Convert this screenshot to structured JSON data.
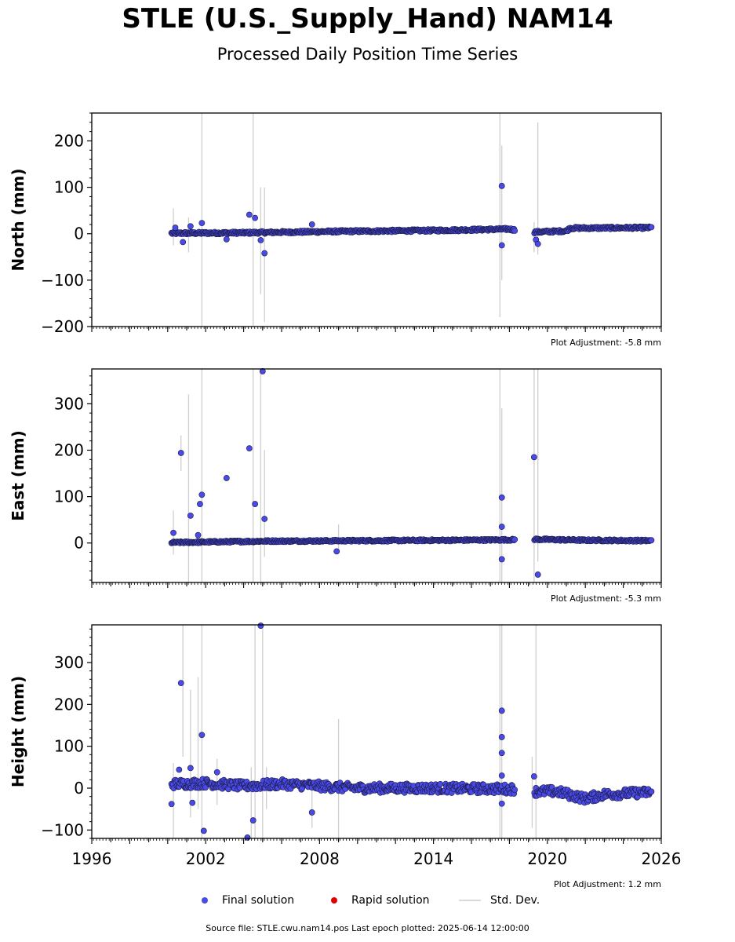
{
  "header": {
    "title": "STLE (U.S._Supply_Hand) NAM14",
    "subtitle": "Processed Daily Position Time Series"
  },
  "footer": {
    "source": "Source file: STLE.cwu.nam14.pos  Last epoch plotted: 2025-06-14 12:00:00"
  },
  "legend": [
    {
      "label": "Final solution",
      "color": "#4a4ae8"
    },
    {
      "label": "Rapid solution",
      "color": "#e00000"
    },
    {
      "label": "Std. Dev.",
      "color": "#d9d9d9"
    }
  ],
  "chart_data": [
    {
      "type": "scatter",
      "ylabel": "North (mm)",
      "adjustment": "Plot Adjustment: -5.8 mm",
      "xlim": [
        1996,
        2026
      ],
      "ylim": [
        -200,
        260
      ],
      "yticks": [
        -200,
        -100,
        0,
        100,
        200
      ],
      "trend": [
        [
          2000.2,
          1
        ],
        [
          2004.0,
          2
        ],
        [
          2009.0,
          5
        ],
        [
          2014.0,
          7
        ],
        [
          2018.0,
          10
        ],
        [
          2019.0,
          3
        ],
        [
          2021.0,
          6
        ],
        [
          2021.2,
          12
        ],
        [
          2025.5,
          13
        ]
      ],
      "gaps": [
        [
          2018.3,
          2019.3
        ]
      ],
      "noise": 2.5,
      "outliers": [
        [
          2000.4,
          13
        ],
        [
          2000.8,
          -18
        ],
        [
          2001.2,
          16
        ],
        [
          2001.8,
          23
        ],
        [
          2003.1,
          -12
        ],
        [
          2004.3,
          41
        ],
        [
          2004.6,
          34
        ],
        [
          2004.9,
          -14
        ],
        [
          2005.1,
          -42
        ],
        [
          2007.6,
          20
        ],
        [
          2017.6,
          103
        ],
        [
          2017.6,
          -25
        ],
        [
          2019.4,
          -13
        ],
        [
          2019.5,
          -22
        ]
      ],
      "errorbars": [
        [
          2000.3,
          -25,
          55
        ],
        [
          2001.1,
          -40,
          35
        ],
        [
          2001.8,
          -200,
          260
        ],
        [
          2004.5,
          -200,
          260
        ],
        [
          2004.9,
          -130,
          100
        ],
        [
          2005.1,
          -190,
          100
        ],
        [
          2017.5,
          -180,
          260
        ],
        [
          2017.6,
          -100,
          190
        ],
        [
          2019.3,
          -40,
          25
        ],
        [
          2019.5,
          -45,
          240
        ]
      ],
      "series": [
        {
          "name": "Final solution",
          "color": "#4a4ae8"
        }
      ]
    },
    {
      "type": "scatter",
      "ylabel": "East (mm)",
      "adjustment": "Plot Adjustment: -5.3 mm",
      "xlim": [
        1996,
        2026
      ],
      "ylim": [
        -85,
        375
      ],
      "yticks": [
        0,
        100,
        200,
        300
      ],
      "trend": [
        [
          2000.2,
          1
        ],
        [
          2005.0,
          4
        ],
        [
          2010.0,
          5
        ],
        [
          2015.0,
          6
        ],
        [
          2018.2,
          7
        ],
        [
          2019.3,
          8
        ],
        [
          2022.0,
          6
        ],
        [
          2025.5,
          5
        ]
      ],
      "gaps": [
        [
          2018.3,
          2019.3
        ]
      ],
      "noise": 2.0,
      "outliers": [
        [
          2000.3,
          22
        ],
        [
          2000.7,
          194
        ],
        [
          2001.2,
          59
        ],
        [
          2001.6,
          17
        ],
        [
          2001.7,
          84
        ],
        [
          2001.8,
          104
        ],
        [
          2003.1,
          140
        ],
        [
          2004.3,
          204
        ],
        [
          2004.6,
          84
        ],
        [
          2005.0,
          370
        ],
        [
          2005.1,
          52
        ],
        [
          2008.9,
          -18
        ],
        [
          2017.6,
          98
        ],
        [
          2017.6,
          35
        ],
        [
          2017.6,
          -35
        ],
        [
          2019.3,
          185
        ],
        [
          2019.5,
          -68
        ]
      ],
      "errorbars": [
        [
          2000.3,
          -25,
          70
        ],
        [
          2000.7,
          155,
          232
        ],
        [
          2001.1,
          -85,
          320
        ],
        [
          2001.8,
          -85,
          375
        ],
        [
          2004.5,
          -85,
          375
        ],
        [
          2004.9,
          -85,
          375
        ],
        [
          2005.1,
          -30,
          200
        ],
        [
          2009.0,
          -15,
          40
        ],
        [
          2017.5,
          -85,
          375
        ],
        [
          2017.6,
          -85,
          290
        ],
        [
          2019.3,
          -85,
          375
        ],
        [
          2019.5,
          -40,
          375
        ]
      ],
      "series": [
        {
          "name": "Final solution",
          "color": "#4a4ae8"
        }
      ]
    },
    {
      "type": "scatter",
      "ylabel": "Height (mm)",
      "adjustment": "Plot Adjustment: 1.2 mm",
      "xlim": [
        1996,
        2026
      ],
      "ylim": [
        -120,
        390
      ],
      "yticks": [
        -100,
        0,
        100,
        200,
        300
      ],
      "trend": [
        [
          2000.2,
          10
        ],
        [
          2002.0,
          12
        ],
        [
          2004.0,
          5
        ],
        [
          2006.0,
          10
        ],
        [
          2010.0,
          0
        ],
        [
          2014.0,
          0
        ],
        [
          2018.2,
          -2
        ],
        [
          2019.3,
          -8
        ],
        [
          2020.5,
          -8
        ],
        [
          2022.0,
          -25
        ],
        [
          2023.0,
          -15
        ],
        [
          2025.5,
          -10
        ]
      ],
      "gaps": [
        [
          2018.3,
          2019.3
        ]
      ],
      "noise": 11,
      "outliers": [
        [
          2000.2,
          -38
        ],
        [
          2000.6,
          44
        ],
        [
          2000.7,
          251
        ],
        [
          2001.2,
          48
        ],
        [
          2001.3,
          -35
        ],
        [
          2001.8,
          127
        ],
        [
          2001.9,
          -102
        ],
        [
          2002.6,
          38
        ],
        [
          2004.2,
          -118
        ],
        [
          2004.5,
          -77
        ],
        [
          2004.9,
          388
        ],
        [
          2007.6,
          -58
        ],
        [
          2017.6,
          185
        ],
        [
          2017.6,
          122
        ],
        [
          2017.6,
          84
        ],
        [
          2017.6,
          30
        ],
        [
          2017.6,
          -37
        ],
        [
          2019.3,
          28
        ]
      ],
      "errorbars": [
        [
          2000.3,
          -120,
          60
        ],
        [
          2000.8,
          75,
          390
        ],
        [
          2001.2,
          -70,
          235
        ],
        [
          2001.6,
          -50,
          265
        ],
        [
          2001.8,
          -120,
          390
        ],
        [
          2002.6,
          -40,
          70
        ],
        [
          2004.4,
          -120,
          50
        ],
        [
          2004.6,
          -120,
          390
        ],
        [
          2005.0,
          -120,
          390
        ],
        [
          2005.2,
          -50,
          50
        ],
        [
          2007.6,
          -95,
          0
        ],
        [
          2009.0,
          -120,
          165
        ],
        [
          2017.5,
          -120,
          390
        ],
        [
          2017.6,
          -120,
          390
        ],
        [
          2019.2,
          -95,
          75
        ],
        [
          2019.4,
          -120,
          390
        ]
      ],
      "series": [
        {
          "name": "Final solution",
          "color": "#4a4ae8"
        }
      ]
    }
  ],
  "xticks": [
    1996,
    2002,
    2008,
    2014,
    2020,
    2026
  ]
}
